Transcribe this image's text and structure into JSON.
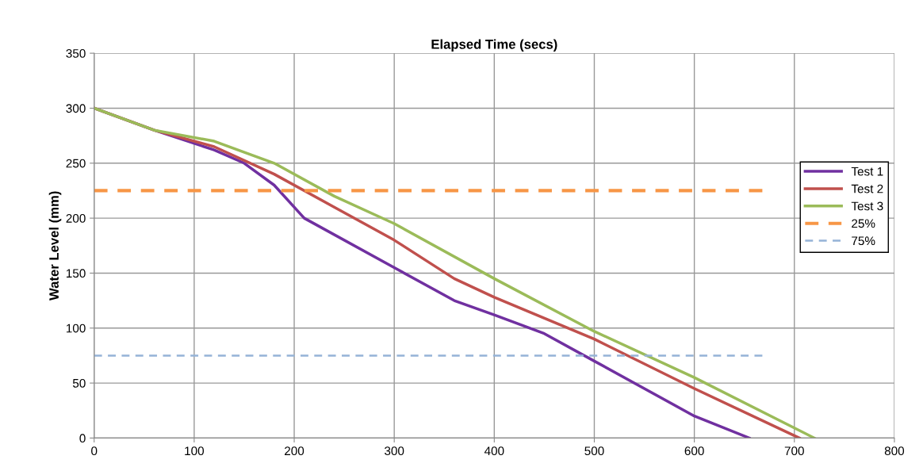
{
  "chart_data": {
    "type": "line",
    "xlabel": "Elapsed Time (secs)",
    "ylabel": "Water Level (mm)",
    "xlim": [
      0,
      800
    ],
    "xticks": [
      0,
      100,
      200,
      300,
      400,
      500,
      600,
      700,
      800
    ],
    "ylim": [
      0,
      350
    ],
    "yticks": [
      0,
      50,
      100,
      150,
      200,
      250,
      300,
      350
    ],
    "grid": true,
    "legend": "right",
    "marker": "none",
    "series": [
      {
        "name": "Test 1",
        "color": "#7030a0",
        "line_style": "solid",
        "x": [
          0,
          60,
          120,
          150,
          180,
          210,
          300,
          360,
          400,
          450,
          500,
          600,
          655
        ],
        "values": [
          300,
          280,
          262,
          250,
          230,
          200,
          155,
          125,
          112,
          95,
          70,
          20,
          0
        ]
      },
      {
        "name": "Test 2",
        "color": "#c0504d",
        "line_style": "solid",
        "x": [
          0,
          60,
          120,
          180,
          240,
          300,
          360,
          400,
          500,
          600,
          705
        ],
        "values": [
          300,
          280,
          265,
          240,
          210,
          180,
          145,
          128,
          90,
          45,
          0
        ]
      },
      {
        "name": "Test 3",
        "color": "#9bbb59",
        "line_style": "solid",
        "x": [
          0,
          60,
          120,
          180,
          240,
          300,
          400,
          500,
          600,
          720
        ],
        "values": [
          300,
          280,
          270,
          250,
          220,
          195,
          145,
          97,
          55,
          0
        ]
      },
      {
        "name": "25%",
        "color": "#f79646",
        "line_style": "dashed",
        "x": [
          0,
          668
        ],
        "values": [
          225,
          225
        ]
      },
      {
        "name": "75%",
        "color": "#95b3d7",
        "line_style": "dashed",
        "x": [
          0,
          668
        ],
        "values": [
          75,
          75
        ]
      }
    ]
  }
}
